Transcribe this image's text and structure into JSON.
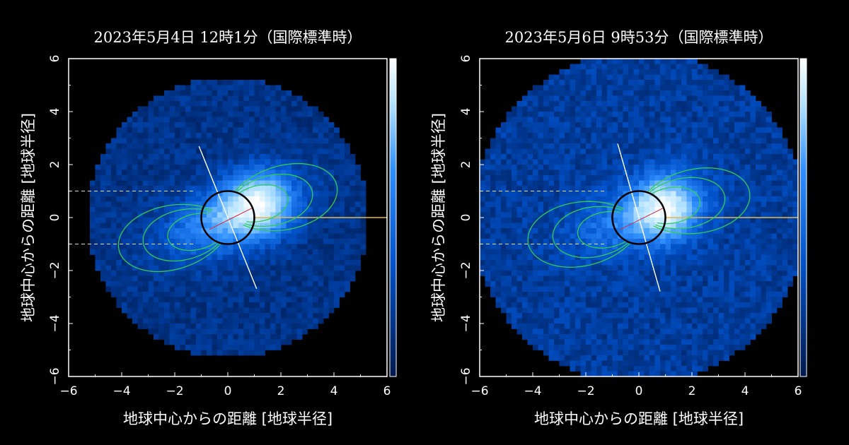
{
  "chart_data": [
    {
      "type": "heatmap",
      "title": "2023年5月4日 12時1分（国際標準時）",
      "xlabel": "地球中心からの距離 [地球半径]",
      "ylabel": "地球中心からの距離 [地球半径]",
      "xlim": [
        -6,
        6
      ],
      "ylim": [
        -6,
        6
      ],
      "xticks": [
        "−6",
        "−4",
        "−2",
        "0",
        "2",
        "4",
        "6"
      ],
      "yticks": [
        "−6",
        "−4",
        "−2",
        "0",
        "2",
        "4",
        "6"
      ],
      "colorbar": true,
      "colormap": [
        "#00194d",
        "#0050c8",
        "#2f8fff",
        "#aee0ff",
        "#ffffff"
      ],
      "emission_peak": {
        "x": 1.2,
        "y": 0.5
      },
      "field_line_shells_L": [
        2.5,
        3.5,
        4.5
      ],
      "spin_axis_tilt_deg": 22
    },
    {
      "type": "heatmap",
      "title": "2023年5月6日 9時53分（国際標準時）",
      "xlabel": "地球中心からの距離 [地球半径]",
      "ylabel": "地球中心からの距離 [地球半径]",
      "xlim": [
        -6,
        6
      ],
      "ylim": [
        -6,
        6
      ],
      "xticks": [
        "−6",
        "−4",
        "−2",
        "0",
        "2",
        "4",
        "6"
      ],
      "yticks": [
        "−6",
        "−4",
        "−2",
        "0",
        "2",
        "4",
        "6"
      ],
      "colorbar": true,
      "colormap": [
        "#00194d",
        "#0050c8",
        "#2f8fff",
        "#aee0ff",
        "#ffffff"
      ],
      "emission_peak": {
        "x": 1.0,
        "y": 0.4
      },
      "field_line_shells_L": [
        2.5,
        3.5,
        4.5
      ],
      "spin_axis_tilt_deg": 16
    }
  ]
}
